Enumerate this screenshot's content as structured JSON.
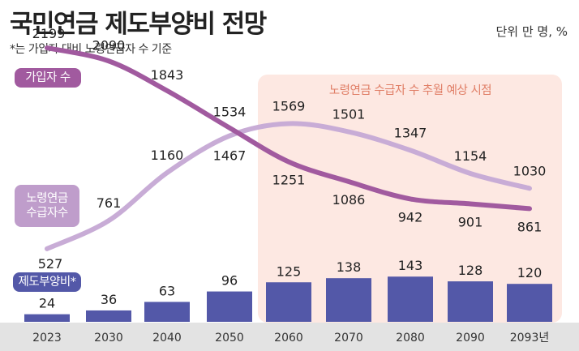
{
  "header": {
    "title": "국민연금 제도부양비 전망",
    "subtitle": "*는 가입자 대비 노령연급자 수 기준",
    "unit": "단위 만 명, %"
  },
  "badges": {
    "workers": "가입자 수",
    "pension_line1": "노령연금",
    "pension_line2": "수급자수",
    "ratio": "제도부양비*"
  },
  "shade_label": "노령연금 수급자 수 추월 예상 시점",
  "colors": {
    "workers_line": "#a15a9f",
    "pension_line": "#c8acd6",
    "bars": "#5358a8",
    "shade": "#fde8e2",
    "shade_text": "#e07e66",
    "axis_band": "#e3e3e3"
  },
  "chart_data": {
    "type": "bar+line",
    "title": "국민연금 제도부양비 전망",
    "categories": [
      "2023",
      "2030",
      "2040",
      "2050",
      "2060",
      "2070",
      "2080",
      "2090",
      "2093년"
    ],
    "highlight_from": "2060",
    "series": [
      {
        "name": "가입자 수",
        "type": "line",
        "values": [
          2199,
          2090,
          1843,
          1534,
          1251,
          1086,
          942,
          901,
          861
        ]
      },
      {
        "name": "노령연금 수급자수",
        "type": "line",
        "values": [
          527,
          761,
          1160,
          1467,
          1569,
          1501,
          1347,
          1154,
          1030
        ]
      },
      {
        "name": "제도부양비*",
        "type": "bar",
        "values": [
          24,
          36,
          63,
          96,
          125,
          138,
          143,
          128,
          120
        ]
      }
    ]
  }
}
